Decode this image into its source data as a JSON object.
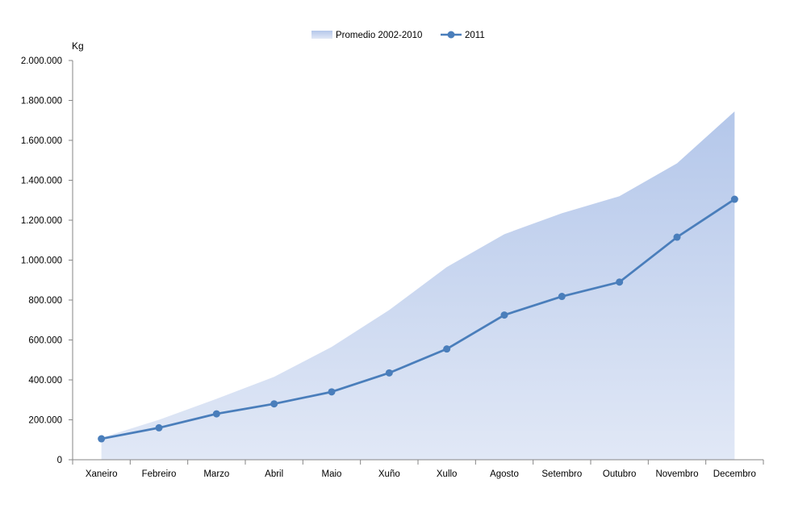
{
  "chart_data": {
    "type": "area",
    "ylabel": "Kg",
    "categories": [
      "Xaneiro",
      "Febreiro",
      "Marzo",
      "Abril",
      "Maio",
      "Xuño",
      "Xullo",
      "Agosto",
      "Setembro",
      "Outubro",
      "Novembro",
      "Decembro"
    ],
    "ylim": [
      0,
      2000000
    ],
    "yticks": [
      0,
      200000,
      400000,
      600000,
      800000,
      1000000,
      1200000,
      1400000,
      1600000,
      1800000,
      2000000
    ],
    "ytick_labels": [
      "0",
      "200.000",
      "400.000",
      "600.000",
      "800.000",
      "1.000.000",
      "1.200.000",
      "1.400.000",
      "1.600.000",
      "1.800.000",
      "2.000.000"
    ],
    "grid": false,
    "legend_position": "top",
    "series": [
      {
        "name": "Promedio 2002-2010",
        "kind": "area",
        "color_top": "#b4c7ea",
        "color_bottom": "#e1e8f6",
        "values": [
          110000,
          200000,
          305000,
          415000,
          565000,
          750000,
          965000,
          1130000,
          1235000,
          1320000,
          1485000,
          1745000
        ]
      },
      {
        "name": "2011",
        "kind": "line",
        "color": "#4a7ebb",
        "values": [
          105000,
          160000,
          230000,
          280000,
          340000,
          435000,
          555000,
          725000,
          818000,
          890000,
          1115000,
          1305000
        ]
      }
    ]
  }
}
